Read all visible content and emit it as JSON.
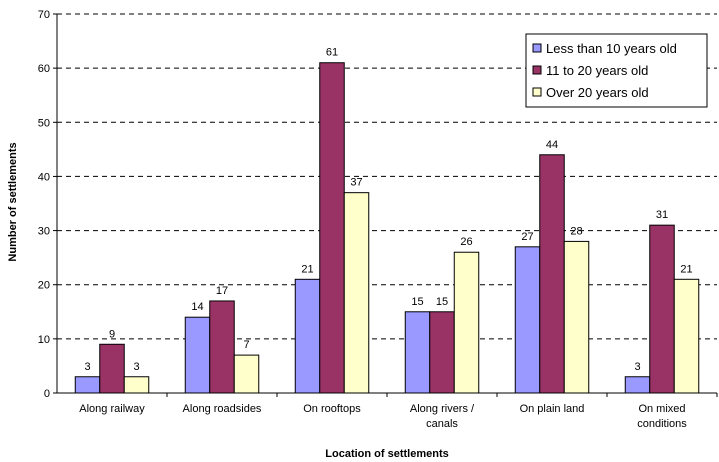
{
  "chart_data": {
    "type": "bar",
    "title": "",
    "xlabel": "Location of settlements",
    "ylabel": "Number of settlements",
    "ylim": [
      0,
      70
    ],
    "yticks": [
      0,
      10,
      20,
      30,
      40,
      50,
      60,
      70
    ],
    "grid": "horizontal-dashed",
    "legend_position": "top-right",
    "categories": [
      [
        "Along railway"
      ],
      [
        "Along roadsides"
      ],
      [
        "On rooftops"
      ],
      [
        "Along rivers /",
        "canals"
      ],
      [
        "On plain land"
      ],
      [
        "On mixed",
        "conditions"
      ]
    ],
    "series": [
      {
        "name": "Less than 10 years old",
        "color": "#9999FF",
        "values": [
          3,
          14,
          21,
          15,
          27,
          3
        ]
      },
      {
        "name": "11 to 20 years old",
        "color": "#993366",
        "values": [
          9,
          17,
          61,
          15,
          44,
          31
        ]
      },
      {
        "name": "Over 20 years old",
        "color": "#FFFFCC",
        "values": [
          3,
          7,
          37,
          26,
          28,
          21
        ]
      }
    ]
  }
}
